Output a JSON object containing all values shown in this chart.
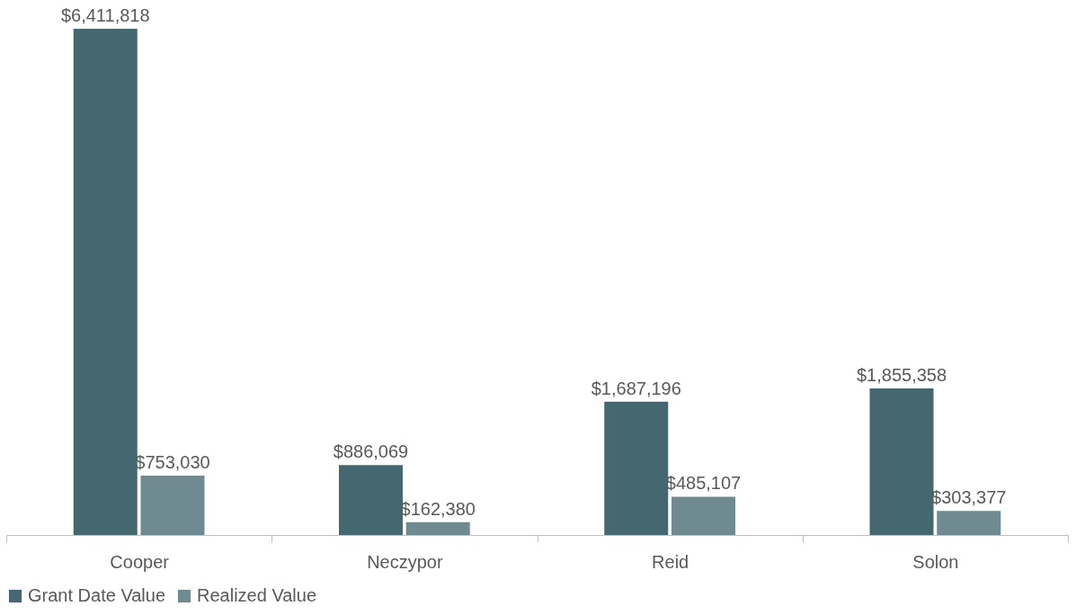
{
  "chart_data": {
    "type": "bar",
    "categories": [
      "Cooper",
      "Neczypor",
      "Reid",
      "Solon"
    ],
    "series": [
      {
        "name": "Grant Date Value",
        "color": "#456870",
        "values": [
          6411818,
          886069,
          1687196,
          1855358
        ],
        "value_labels": [
          "$6,411,818",
          "$886,069",
          "$1,687,196",
          "$1,855,358"
        ]
      },
      {
        "name": "Realized Value",
        "color": "#6f8a91",
        "values": [
          753030,
          162380,
          485107,
          303377
        ],
        "value_labels": [
          "$753,030",
          "$162,380",
          "$485,107",
          "$303,377"
        ]
      }
    ],
    "legend": "bottom",
    "grid": false,
    "tick_labels": "x"
  }
}
